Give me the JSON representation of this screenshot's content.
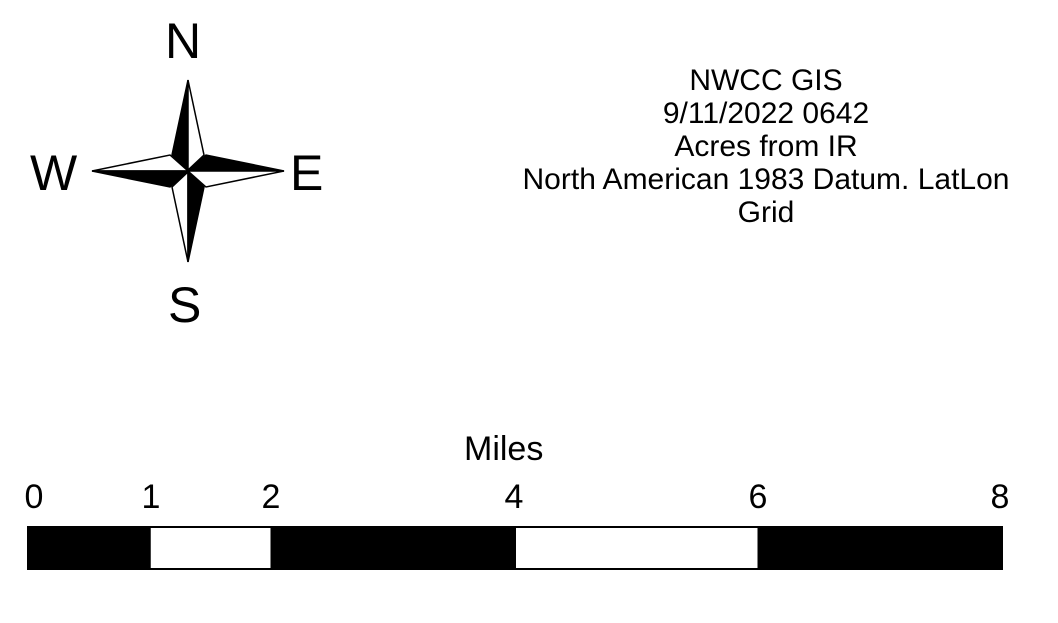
{
  "compass": {
    "north": "N",
    "south": "S",
    "east": "E",
    "west": "W"
  },
  "info": {
    "lines": [
      "NWCC GIS",
      "9/11/2022 0642",
      "Acres from IR",
      "North American 1983 Datum. LatLon",
      "Grid"
    ]
  },
  "scale_bar": {
    "unit": "Miles",
    "ticks": [
      "0",
      "1",
      "2",
      "4",
      "6",
      "8"
    ],
    "segments": [
      {
        "from": 0,
        "to": 1,
        "fill": "#000000"
      },
      {
        "from": 1,
        "to": 2,
        "fill": "#ffffff"
      },
      {
        "from": 2,
        "to": 4,
        "fill": "#000000"
      },
      {
        "from": 4,
        "to": 6,
        "fill": "#ffffff"
      },
      {
        "from": 6,
        "to": 8,
        "fill": "#000000"
      }
    ]
  }
}
